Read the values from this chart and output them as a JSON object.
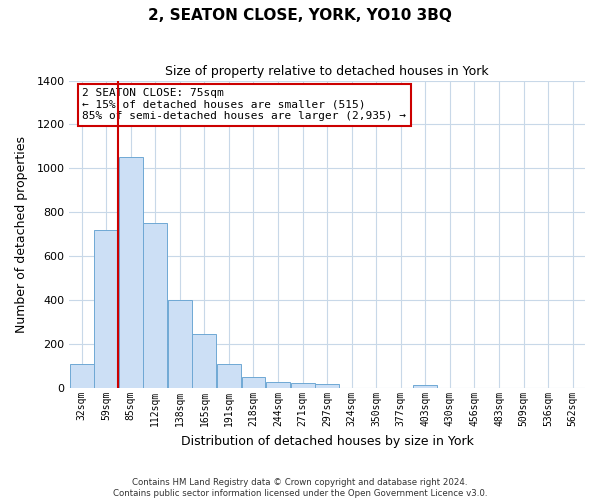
{
  "title": "2, SEATON CLOSE, YORK, YO10 3BQ",
  "subtitle": "Size of property relative to detached houses in York",
  "xlabel": "Distribution of detached houses by size in York",
  "ylabel": "Number of detached properties",
  "bar_categories": [
    "32sqm",
    "59sqm",
    "85sqm",
    "112sqm",
    "138sqm",
    "165sqm",
    "191sqm",
    "218sqm",
    "244sqm",
    "271sqm",
    "297sqm",
    "324sqm",
    "350sqm",
    "377sqm",
    "403sqm",
    "430sqm",
    "456sqm",
    "483sqm",
    "509sqm",
    "536sqm",
    "562sqm"
  ],
  "bar_values": [
    108,
    720,
    1050,
    750,
    400,
    245,
    110,
    50,
    28,
    25,
    20,
    0,
    0,
    0,
    15,
    0,
    0,
    0,
    0,
    0,
    0
  ],
  "bar_color": "#ccdff5",
  "bar_edge_color": "#6fa8d4",
  "vline_color": "#cc0000",
  "vline_index": 2,
  "ylim": [
    0,
    1400
  ],
  "yticks": [
    0,
    200,
    400,
    600,
    800,
    1000,
    1200,
    1400
  ],
  "annotation_text": "2 SEATON CLOSE: 75sqm\n← 15% of detached houses are smaller (515)\n85% of semi-detached houses are larger (2,935) →",
  "annotation_box_color": "#ffffff",
  "annotation_box_edge": "#cc0000",
  "footer_line1": "Contains HM Land Registry data © Crown copyright and database right 2024.",
  "footer_line2": "Contains public sector information licensed under the Open Government Licence v3.0.",
  "background_color": "#ffffff",
  "grid_color": "#c8d8e8",
  "title_fontsize": 11,
  "subtitle_fontsize": 9
}
